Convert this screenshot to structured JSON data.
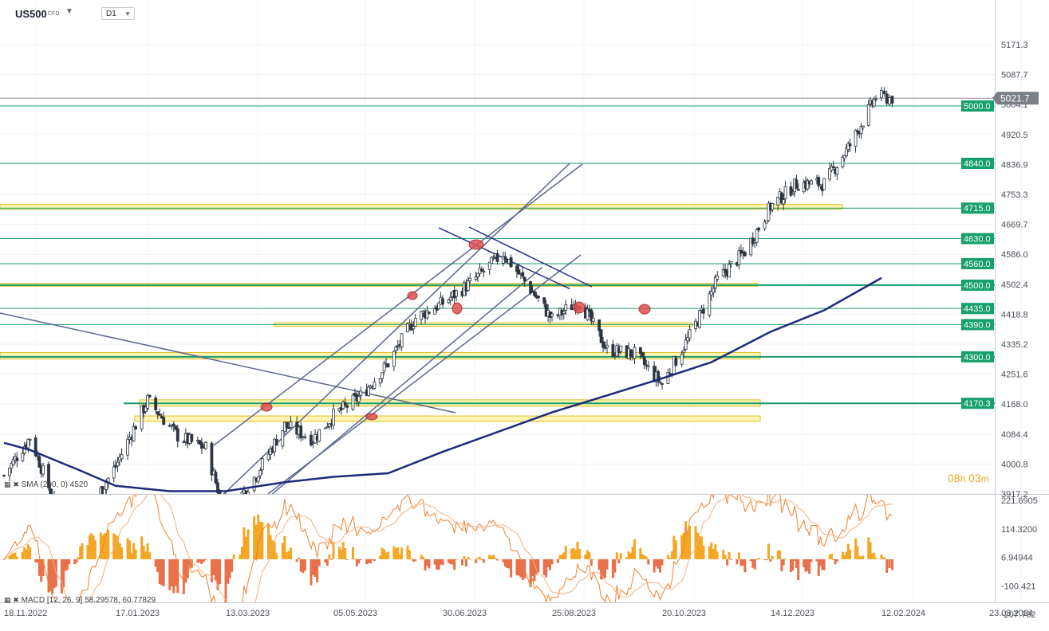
{
  "header": {
    "symbol": "US500",
    "symbol_type": "CFD",
    "timeframe": "D1"
  },
  "indicators": {
    "sma_label": "SMA (200, 0)",
    "sma_value": "4520",
    "macd_label": "MACD",
    "macd_params": "[12, 26, 9]",
    "macd_value_1": "58.29578",
    "macd_value_2": "60.77829"
  },
  "countdown": {
    "hours": "08",
    "hours_unit": "h",
    "minutes": "03",
    "minutes_unit": "m"
  },
  "colors": {
    "candle": "#2d3540",
    "level_line": "#1a9c6b",
    "level_label_bg": "#16a06c",
    "zone_fill": "#fff4a8",
    "zone_border": "#d4b400",
    "sma": "#1e2a7a",
    "trendline": "#5c6890",
    "marker": "#e05050",
    "macd_pos": "#f5a623",
    "macd_neg": "#e8704a",
    "macd_line": "#f08030",
    "signal_line": "#f5b080",
    "price_label_bg": "#7a7f88"
  },
  "chart_data": {
    "type": "candlestick",
    "price_axis_ticks": [
      "5171.3",
      "5087.7",
      "5004.1",
      "4920.5",
      "4836.9",
      "4753.3",
      "4669.7",
      "4586.0",
      "4502.4",
      "4418.8",
      "4335.2",
      "4251.6",
      "4168.0",
      "4084.4",
      "4000.8",
      "3917.2"
    ],
    "macd_axis_ticks": [
      "221.6905",
      "114.3200",
      "6.94944",
      "-100.421",
      "-207.792"
    ],
    "date_axis_ticks": [
      "18.11.2022",
      "17.01.2023",
      "13.03.2023",
      "05.05.2023",
      "30.06.2023",
      "25.08.2023",
      "20.10.2023",
      "14.12.2023",
      "12.02.2024",
      "23.03.2024"
    ],
    "current_price": "5021.7",
    "horizontal_levels": [
      "5000.0",
      "4840.0",
      "4715.0",
      "4630.0",
      "4560.0",
      "4500.0",
      "4435.0",
      "4390.0",
      "4300.0",
      "4170.3"
    ],
    "ohlc_approx": [
      [
        "18.11.2022",
        3965,
        3975,
        3950,
        3969
      ],
      [
        "02.12.2022",
        4071,
        4100,
        4062,
        4076
      ],
      [
        "15.12.2022",
        3900,
        3950,
        3870,
        3895
      ],
      [
        "28.12.2022",
        3830,
        3850,
        3800,
        3822
      ],
      [
        "17.01.2023",
        3990,
        4012,
        3975,
        3995
      ],
      [
        "02.02.2023",
        4120,
        4195,
        4100,
        4179
      ],
      [
        "17.02.2023",
        4080,
        4090,
        4045,
        4079
      ],
      [
        "03.03.2023",
        3985,
        4048,
        3960,
        4045
      ],
      [
        "13.03.2023",
        3860,
        3900,
        3808,
        3855
      ],
      [
        "28.03.2023",
        3975,
        3985,
        3960,
        3971
      ],
      [
        "11.04.2023",
        4110,
        4125,
        4100,
        4108
      ],
      [
        "25.04.2023",
        4100,
        4110,
        4070,
        4071
      ],
      [
        "05.05.2023",
        4090,
        4140,
        4080,
        4136
      ],
      [
        "19.05.2023",
        4195,
        4212,
        4180,
        4191
      ],
      [
        "02.06.2023",
        4268,
        4290,
        4260,
        4282
      ],
      [
        "16.06.2023",
        4430,
        4448,
        4405,
        4409
      ],
      [
        "30.06.2023",
        4420,
        4456,
        4418,
        4450
      ],
      [
        "14.07.2023",
        4500,
        4528,
        4490,
        4505
      ],
      [
        "31.07.2023",
        4585,
        4594,
        4570,
        4589
      ],
      [
        "14.08.2023",
        4460,
        4495,
        4455,
        4489
      ],
      [
        "25.08.2023",
        4380,
        4418,
        4356,
        4405
      ],
      [
        "08.09.2023",
        4450,
        4466,
        4440,
        4457
      ],
      [
        "22.09.2023",
        4340,
        4357,
        4315,
        4320
      ],
      [
        "06.10.2023",
        4230,
        4310,
        4220,
        4308
      ],
      [
        "20.10.2023",
        4270,
        4280,
        4220,
        4224
      ],
      [
        "03.11.2023",
        4340,
        4370,
        4320,
        4358
      ],
      [
        "17.11.2023",
        4500,
        4520,
        4490,
        4514
      ],
      [
        "01.12.2023",
        4550,
        4600,
        4540,
        4594
      ],
      [
        "14.12.2023",
        4700,
        4738,
        4690,
        4719
      ],
      [
        "28.12.2023",
        4780,
        4793,
        4770,
        4783
      ],
      [
        "12.01.2024",
        4780,
        4800,
        4760,
        4783
      ],
      [
        "26.01.2024",
        4880,
        4906,
        4865,
        4891
      ],
      [
        "09.02.2024",
        4990,
        5030,
        4985,
        5026
      ],
      [
        "16.02.2024",
        5010,
        5040,
        4995,
        5021.7
      ]
    ]
  }
}
